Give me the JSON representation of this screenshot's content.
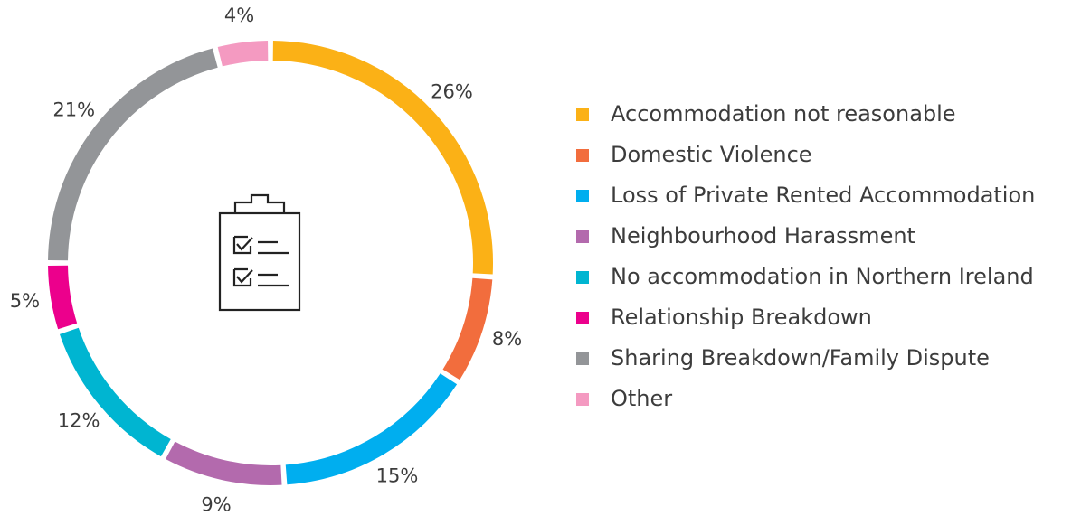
{
  "chart_data": {
    "type": "donut",
    "categories": [
      "Accommodation not reasonable",
      "Domestic Violence",
      "Loss of Private Rented Accommodation",
      "Neighbourhood Harassment",
      "No accommodation in Northern Ireland",
      "Relationship Breakdown",
      "Sharing Breakdown/Family Dispute",
      "Other"
    ],
    "values": [
      26,
      8,
      15,
      9,
      12,
      5,
      21,
      4
    ],
    "value_labels": [
      "26%",
      "8%",
      "15%",
      "9%",
      "12%",
      "5%",
      "21%",
      "4%"
    ],
    "colors": [
      "#fbb116",
      "#f26d3d",
      "#00aeef",
      "#b36aad",
      "#00b5d1",
      "#ec008c",
      "#939598",
      "#f49ac1"
    ],
    "legend": "right"
  }
}
